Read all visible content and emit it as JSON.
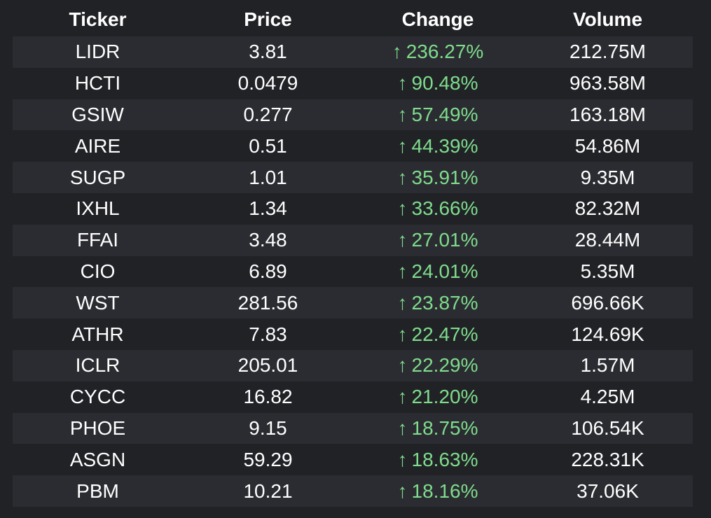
{
  "columns": {
    "ticker": "Ticker",
    "price": "Price",
    "change": "Change",
    "volume": "Volume"
  },
  "arrow_glyph": "↑",
  "colors": {
    "background": "#212226",
    "stripe": "#2b2c31",
    "positive": "#7fdc8d",
    "text": "#ffffff"
  },
  "rows": [
    {
      "ticker": "LIDR",
      "price": "3.81",
      "change": "236.27%",
      "volume": "212.75M"
    },
    {
      "ticker": "HCTI",
      "price": "0.0479",
      "change": "90.48%",
      "volume": "963.58M"
    },
    {
      "ticker": "GSIW",
      "price": "0.277",
      "change": "57.49%",
      "volume": "163.18M"
    },
    {
      "ticker": "AIRE",
      "price": "0.51",
      "change": "44.39%",
      "volume": "54.86M"
    },
    {
      "ticker": "SUGP",
      "price": "1.01",
      "change": "35.91%",
      "volume": "9.35M"
    },
    {
      "ticker": "IXHL",
      "price": "1.34",
      "change": "33.66%",
      "volume": "82.32M"
    },
    {
      "ticker": "FFAI",
      "price": "3.48",
      "change": "27.01%",
      "volume": "28.44M"
    },
    {
      "ticker": "CIO",
      "price": "6.89",
      "change": "24.01%",
      "volume": "5.35M"
    },
    {
      "ticker": "WST",
      "price": "281.56",
      "change": "23.87%",
      "volume": "696.66K"
    },
    {
      "ticker": "ATHR",
      "price": "7.83",
      "change": "22.47%",
      "volume": "124.69K"
    },
    {
      "ticker": "ICLR",
      "price": "205.01",
      "change": "22.29%",
      "volume": "1.57M"
    },
    {
      "ticker": "CYCC",
      "price": "16.82",
      "change": "21.20%",
      "volume": "4.25M"
    },
    {
      "ticker": "PHOE",
      "price": "9.15",
      "change": "18.75%",
      "volume": "106.54K"
    },
    {
      "ticker": "ASGN",
      "price": "59.29",
      "change": "18.63%",
      "volume": "228.31K"
    },
    {
      "ticker": "PBM",
      "price": "10.21",
      "change": "18.16%",
      "volume": "37.06K"
    }
  ]
}
